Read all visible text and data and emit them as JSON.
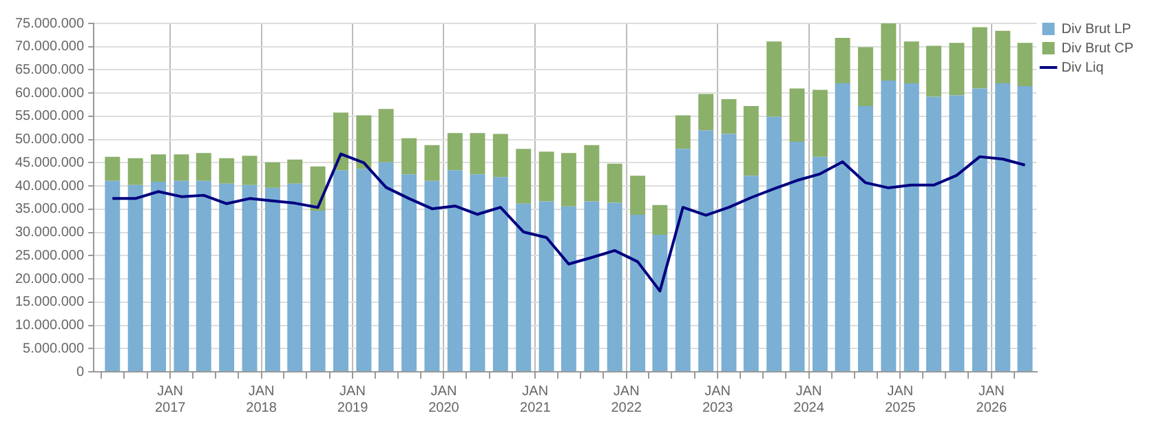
{
  "chart_data": {
    "type": "bar",
    "stacked": true,
    "x": [
      "2016-05-15",
      "2016-08-15",
      "2016-11-15",
      "2017-02-15",
      "2017-05-15",
      "2017-08-15",
      "2017-11-15",
      "2018-02-15",
      "2018-05-15",
      "2018-08-15",
      "2018-11-15",
      "2019-02-15",
      "2019-05-15",
      "2019-08-15",
      "2019-11-15",
      "2020-02-15",
      "2020-05-15",
      "2020-08-15",
      "2020-11-15",
      "2021-02-15",
      "2021-05-15",
      "2021-08-15",
      "2021-11-15",
      "2022-02-15",
      "2022-05-15",
      "2022-08-15",
      "2022-11-15",
      "2023-02-15",
      "2023-05-15",
      "2023-08-15",
      "2023-11-15",
      "2024-02-15",
      "2024-05-15",
      "2024-08-15",
      "2024-11-15",
      "2025-02-15",
      "2025-05-15",
      "2025-08-15",
      "2025-11-15",
      "2026-02-15",
      "2026-05-15"
    ],
    "series": [
      {
        "name": "Div Brut LP",
        "color": "#7bafd4",
        "values": [
          41100000,
          40200000,
          40900000,
          41100000,
          41100000,
          40500000,
          40200000,
          39600000,
          40500000,
          34700000,
          43400000,
          43700000,
          45100000,
          42500000,
          41100000,
          43400000,
          42500000,
          41900000,
          36200000,
          36700000,
          35600000,
          36700000,
          36400000,
          33800000,
          29500000,
          48000000,
          52000000,
          51200000,
          42200000,
          54900000,
          49500000,
          46300000,
          62100000,
          57200000,
          62700000,
          62100000,
          59200000,
          59500000,
          61000000,
          62100000,
          61500000
        ]
      },
      {
        "name": "Div Brut CP",
        "color": "#8bb06a",
        "values": [
          5200000,
          5800000,
          5900000,
          5700000,
          6000000,
          5500000,
          6300000,
          5500000,
          5200000,
          9500000,
          12400000,
          11500000,
          11500000,
          7800000,
          7700000,
          8000000,
          8900000,
          9300000,
          11800000,
          10700000,
          11500000,
          12100000,
          8400000,
          8400000,
          6400000,
          7200000,
          7800000,
          7500000,
          15000000,
          16200000,
          11500000,
          14400000,
          9800000,
          12700000,
          12300000,
          9000000,
          11000000,
          11300000,
          13200000,
          11300000,
          9300000
        ]
      },
      {
        "name": "Div Liq",
        "type": "line",
        "color": "#000080",
        "values": [
          37300000,
          37300000,
          38800000,
          37700000,
          38000000,
          36200000,
          37300000,
          36800000,
          36300000,
          35400000,
          46900000,
          45000000,
          39700000,
          37300000,
          35100000,
          35700000,
          33900000,
          35400000,
          30100000,
          28900000,
          23200000,
          24600000,
          26100000,
          23700000,
          17400000,
          35400000,
          33700000,
          35400000,
          37500000,
          39400000,
          41200000,
          42600000,
          45200000,
          40700000,
          39600000,
          40200000,
          40200000,
          42300000,
          46300000,
          45800000,
          44500000
        ]
      }
    ],
    "xlim": [
      "2016-03-01",
      "2026-07-01"
    ],
    "xticks": [
      {
        "value": "2016-04-01",
        "label": null
      },
      {
        "value": "2016-07-01",
        "label": null
      },
      {
        "value": "2016-10-01",
        "label": null
      },
      {
        "value": "2017-01-01",
        "label": "JAN\n2017"
      },
      {
        "value": "2017-04-01",
        "label": null
      },
      {
        "value": "2017-07-01",
        "label": null
      },
      {
        "value": "2017-10-01",
        "label": null
      },
      {
        "value": "2018-01-01",
        "label": "JAN\n2018"
      },
      {
        "value": "2018-04-01",
        "label": null
      },
      {
        "value": "2018-07-01",
        "label": null
      },
      {
        "value": "2018-10-01",
        "label": null
      },
      {
        "value": "2019-01-01",
        "label": "JAN\n2019"
      },
      {
        "value": "2019-04-01",
        "label": null
      },
      {
        "value": "2019-07-01",
        "label": null
      },
      {
        "value": "2019-10-01",
        "label": null
      },
      {
        "value": "2020-01-01",
        "label": "JAN\n2020"
      },
      {
        "value": "2020-04-01",
        "label": null
      },
      {
        "value": "2020-07-01",
        "label": null
      },
      {
        "value": "2020-10-01",
        "label": null
      },
      {
        "value": "2021-01-01",
        "label": "JAN\n2021"
      },
      {
        "value": "2021-04-01",
        "label": null
      },
      {
        "value": "2021-07-01",
        "label": null
      },
      {
        "value": "2021-10-01",
        "label": null
      },
      {
        "value": "2022-01-01",
        "label": "JAN\n2022"
      },
      {
        "value": "2022-04-01",
        "label": null
      },
      {
        "value": "2022-07-01",
        "label": null
      },
      {
        "value": "2022-10-01",
        "label": null
      },
      {
        "value": "2023-01-01",
        "label": "JAN\n2023"
      },
      {
        "value": "2023-04-01",
        "label": null
      },
      {
        "value": "2023-07-01",
        "label": null
      },
      {
        "value": "2023-10-01",
        "label": null
      },
      {
        "value": "2024-01-01",
        "label": "JAN\n2024"
      },
      {
        "value": "2024-04-01",
        "label": null
      },
      {
        "value": "2024-07-01",
        "label": null
      },
      {
        "value": "2024-10-01",
        "label": null
      },
      {
        "value": "2025-01-01",
        "label": "JAN\n2025"
      },
      {
        "value": "2025-04-01",
        "label": null
      },
      {
        "value": "2025-07-01",
        "label": null
      },
      {
        "value": "2025-10-01",
        "label": null
      },
      {
        "value": "2026-01-01",
        "label": "JAN\n2026"
      },
      {
        "value": "2026-04-01",
        "label": null
      }
    ],
    "ylim": [
      0,
      75000000
    ],
    "yticks": [
      {
        "value": 0,
        "label": "0"
      },
      {
        "value": 5000000,
        "label": "5.000.000"
      },
      {
        "value": 10000000,
        "label": "10.000.000"
      },
      {
        "value": 15000000,
        "label": "15.000.000"
      },
      {
        "value": 20000000,
        "label": "20.000.000"
      },
      {
        "value": 25000000,
        "label": "25.000.000"
      },
      {
        "value": 30000000,
        "label": "30.000.000"
      },
      {
        "value": 35000000,
        "label": "35.000.000"
      },
      {
        "value": 40000000,
        "label": "40.000.000"
      },
      {
        "value": 45000000,
        "label": "45.000.000"
      },
      {
        "value": 50000000,
        "label": "50.000.000"
      },
      {
        "value": 55000000,
        "label": "55.000.000"
      },
      {
        "value": 60000000,
        "label": "60.000.000"
      },
      {
        "value": 65000000,
        "label": "65.000.000"
      },
      {
        "value": 70000000,
        "label": "70.000.000"
      },
      {
        "value": 75000000,
        "label": "75.000.000"
      }
    ],
    "grid": true,
    "legend": "top right",
    "marker": "none",
    "line_style": "solid"
  }
}
